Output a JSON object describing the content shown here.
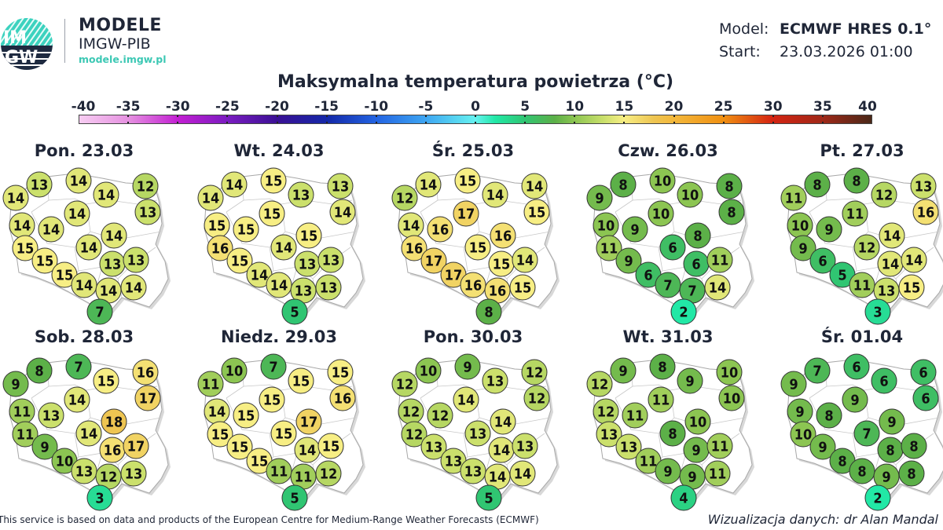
{
  "header": {
    "logo_text": "IMGW",
    "brand_title": "MODELE",
    "brand_subtitle": "IMGW-PIB",
    "brand_url": "modele.imgw.pl",
    "model_label": "Model:",
    "model_value": "ECMWF HRES 0.1°",
    "start_label": "Start:",
    "start_value": "23.03.2026 01:00"
  },
  "title": "Maksymalna temperatura powietrza (°C)",
  "colorbar": {
    "ticks": [
      "-40",
      "-35",
      "-30",
      "-25",
      "-20",
      "-15",
      "-10",
      "-5",
      "0",
      "5",
      "10",
      "15",
      "20",
      "25",
      "30",
      "35",
      "40"
    ],
    "range": [
      -40,
      40
    ],
    "stops": [
      [
        -40,
        "#f7cdf2"
      ],
      [
        -35,
        "#e590e0"
      ],
      [
        -30,
        "#c21ed2"
      ],
      [
        -25,
        "#7a1cc0"
      ],
      [
        -20,
        "#3a1094"
      ],
      [
        -15,
        "#1428a8"
      ],
      [
        -10,
        "#2364e2"
      ],
      [
        -5,
        "#3ea6f2"
      ],
      [
        0,
        "#66f2f0"
      ],
      [
        2,
        "#22e8a6"
      ],
      [
        5,
        "#30c572"
      ],
      [
        8,
        "#5cb048"
      ],
      [
        10,
        "#8cc552"
      ],
      [
        13,
        "#cbe06c"
      ],
      [
        15,
        "#f7ee84"
      ],
      [
        18,
        "#eec552"
      ],
      [
        20,
        "#f3b83c"
      ],
      [
        25,
        "#f09012"
      ],
      [
        30,
        "#d42412"
      ],
      [
        35,
        "#a02818"
      ],
      [
        40,
        "#4a2818"
      ]
    ]
  },
  "days": [
    {
      "label": "Pon. 23.03",
      "values": [
        13,
        14,
        14,
        14,
        12,
        13,
        14,
        14,
        14,
        14,
        15,
        14,
        15,
        13,
        13,
        15,
        14,
        14,
        14,
        7
      ]
    },
    {
      "label": "Wt. 24.03",
      "values": [
        14,
        15,
        14,
        13,
        13,
        14,
        15,
        15,
        15,
        15,
        16,
        14,
        15,
        13,
        13,
        14,
        14,
        13,
        13,
        5
      ]
    },
    {
      "label": "Śr. 25.03",
      "values": [
        14,
        15,
        12,
        14,
        14,
        15,
        17,
        14,
        16,
        16,
        16,
        15,
        17,
        15,
        14,
        17,
        16,
        16,
        15,
        8
      ]
    },
    {
      "label": "Czw. 26.03",
      "values": [
        8,
        10,
        9,
        10,
        8,
        8,
        10,
        10,
        9,
        8,
        11,
        6,
        9,
        6,
        11,
        6,
        7,
        7,
        14,
        2
      ]
    },
    {
      "label": "Pt. 27.03",
      "values": [
        8,
        8,
        11,
        12,
        13,
        16,
        11,
        10,
        9,
        14,
        9,
        12,
        6,
        14,
        14,
        5,
        11,
        13,
        15,
        3
      ]
    },
    {
      "label": "Sob. 28.03",
      "values": [
        8,
        7,
        9,
        15,
        16,
        17,
        14,
        11,
        13,
        18,
        11,
        14,
        9,
        16,
        17,
        10,
        13,
        12,
        13,
        3
      ]
    },
    {
      "label": "Niedz. 29.03",
      "values": [
        10,
        7,
        11,
        15,
        15,
        16,
        15,
        14,
        15,
        17,
        15,
        15,
        15,
        14,
        15,
        15,
        11,
        11,
        12,
        5
      ]
    },
    {
      "label": "Pon. 30.03",
      "values": [
        10,
        9,
        12,
        13,
        12,
        12,
        14,
        12,
        12,
        14,
        12,
        13,
        13,
        14,
        13,
        13,
        13,
        14,
        14,
        5
      ]
    },
    {
      "label": "Wt. 31.03",
      "values": [
        9,
        8,
        12,
        9,
        10,
        10,
        11,
        12,
        11,
        10,
        13,
        8,
        13,
        9,
        11,
        11,
        9,
        9,
        11,
        4
      ]
    },
    {
      "label": "Śr. 01.04",
      "values": [
        7,
        6,
        9,
        6,
        6,
        6,
        9,
        9,
        8,
        9,
        10,
        7,
        9,
        8,
        8,
        8,
        8,
        9,
        8,
        2
      ]
    }
  ],
  "footer": {
    "attribution": "This service is based on data and products of the European Centre for Medium-Range Weather Forecasts (ECMWF)",
    "credit": "Wizualizacja danych: dr Alan Mandal"
  }
}
